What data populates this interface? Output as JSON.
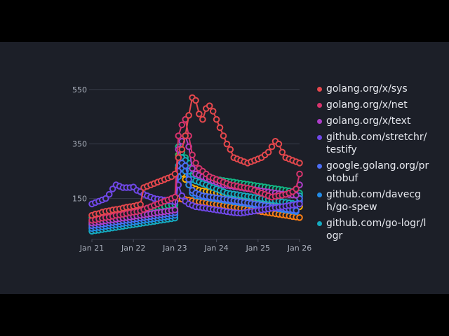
{
  "chart_data": {
    "type": "line",
    "x": [
      "2021-01",
      "2021-02",
      "2021-03",
      "2021-04",
      "2021-05",
      "2021-06",
      "2021-07",
      "2021-08",
      "2021-09",
      "2021-10",
      "2021-11",
      "2021-12",
      "2022-01",
      "2022-02",
      "2022-03",
      "2022-04",
      "2022-05",
      "2022-06",
      "2022-07",
      "2022-08",
      "2022-09",
      "2022-10",
      "2022-11",
      "2022-12",
      "2023-01",
      "2023-02",
      "2023-03",
      "2023-04",
      "2023-05",
      "2023-06",
      "2023-07",
      "2023-08",
      "2023-09",
      "2023-10",
      "2023-11",
      "2023-12",
      "2024-01",
      "2024-02",
      "2024-03",
      "2024-04",
      "2024-05",
      "2024-06",
      "2024-07",
      "2024-08",
      "2024-09",
      "2024-10",
      "2024-11",
      "2024-12",
      "2025-01",
      "2025-02",
      "2025-03",
      "2025-04",
      "2025-05",
      "2025-06",
      "2025-07",
      "2025-08",
      "2025-09",
      "2025-10",
      "2025-11",
      "2025-12",
      "2026-01"
    ],
    "xticks": [
      "Jan 21",
      "Jan 22",
      "Jan 23",
      "Jan 24",
      "Jan 25",
      "Jan 26"
    ],
    "yticks": [
      150,
      350,
      550
    ],
    "ylim": [
      0,
      570
    ],
    "grid": true,
    "legend_position": "right",
    "series": [
      {
        "name": "golang.org/x/sys",
        "color": "#e5484d",
        "values": [
          88,
          93,
          95,
          100,
          103,
          105,
          108,
          110,
          112,
          115,
          118,
          120,
          122,
          125,
          128,
          190,
          195,
          200,
          205,
          210,
          215,
          220,
          225,
          230,
          240,
          300,
          330,
          380,
          455,
          520,
          510,
          460,
          440,
          480,
          490,
          470,
          440,
          410,
          380,
          350,
          330,
          300,
          295,
          290,
          285,
          280,
          285,
          290,
          295,
          300,
          310,
          320,
          340,
          360,
          350,
          320,
          300,
          295,
          290,
          285,
          280
        ]
      },
      {
        "name": "golang.org/x/net",
        "color": "#d6336c",
        "values": [
          70,
          72,
          75,
          78,
          80,
          82,
          85,
          88,
          90,
          92,
          95,
          98,
          100,
          102,
          105,
          110,
          115,
          120,
          125,
          130,
          135,
          140,
          145,
          150,
          155,
          380,
          420,
          440,
          380,
          310,
          280,
          260,
          250,
          240,
          230,
          225,
          220,
          215,
          210,
          205,
          200,
          198,
          195,
          192,
          190,
          188,
          185,
          180,
          175,
          170,
          165,
          160,
          155,
          158,
          160,
          162,
          165,
          170,
          175,
          185,
          240
        ]
      },
      {
        "name": "golang.org/x/text",
        "color": "#ae3ec9",
        "values": [
          60,
          62,
          64,
          66,
          68,
          70,
          72,
          74,
          76,
          78,
          80,
          82,
          84,
          86,
          88,
          90,
          92,
          94,
          96,
          98,
          100,
          102,
          104,
          106,
          108,
          330,
          360,
          380,
          340,
          260,
          240,
          235,
          230,
          225,
          220,
          215,
          210,
          205,
          200,
          198,
          196,
          194,
          192,
          190,
          188,
          186,
          184,
          182,
          180,
          178,
          176,
          174,
          172,
          170,
          168,
          166,
          165,
          164,
          163,
          162,
          200
        ]
      },
      {
        "name": "github.com/stretchr/testify",
        "color": "#7048e8",
        "values": [
          130,
          135,
          140,
          145,
          150,
          165,
          185,
          200,
          195,
          190,
          190,
          190,
          192,
          180,
          175,
          165,
          160,
          155,
          150,
          148,
          146,
          144,
          142,
          140,
          138,
          200,
          160,
          140,
          130,
          125,
          120,
          118,
          116,
          114,
          112,
          110,
          108,
          106,
          104,
          102,
          100,
          98,
          97,
          96,
          98,
          100,
          102,
          104,
          106,
          108,
          110,
          112,
          114,
          116,
          118,
          120,
          122,
          124,
          126,
          128,
          130
        ]
      },
      {
        "name": "google.golang.org/protobuf",
        "color": "#4c6ef5",
        "values": [
          50,
          52,
          54,
          56,
          58,
          60,
          62,
          64,
          66,
          68,
          70,
          72,
          74,
          76,
          78,
          80,
          82,
          84,
          86,
          88,
          90,
          92,
          94,
          96,
          98,
          250,
          280,
          270,
          220,
          180,
          170,
          165,
          160,
          158,
          156,
          154,
          152,
          150,
          148,
          146,
          144,
          142,
          140,
          138,
          136,
          134,
          132,
          130,
          128,
          126,
          124,
          122,
          120,
          118,
          116,
          114,
          112,
          110,
          108,
          106,
          150
        ]
      },
      {
        "name": "github.com/davecgh/go-spew",
        "color": "#228be6",
        "values": [
          40,
          42,
          44,
          46,
          48,
          50,
          52,
          54,
          56,
          58,
          60,
          62,
          64,
          66,
          68,
          70,
          72,
          74,
          76,
          78,
          80,
          82,
          84,
          86,
          88,
          230,
          260,
          250,
          200,
          170,
          160,
          158,
          156,
          154,
          152,
          150,
          148,
          146,
          144,
          142,
          140,
          138,
          136,
          134,
          132,
          130,
          128,
          126,
          124,
          122,
          120,
          118,
          116,
          114,
          112,
          110,
          108,
          106,
          104,
          102,
          140
        ]
      },
      {
        "name": "github.com/go-logr/logr",
        "color": "#15aabf",
        "values": [
          30,
          32,
          34,
          36,
          38,
          40,
          42,
          44,
          46,
          48,
          50,
          52,
          54,
          56,
          58,
          60,
          62,
          64,
          66,
          68,
          70,
          72,
          74,
          76,
          78,
          270,
          300,
          290,
          250,
          220,
          215,
          210,
          205,
          200,
          195,
          190,
          185,
          180,
          175,
          170,
          168,
          166,
          164,
          162,
          160,
          158,
          156,
          154,
          152,
          150,
          148,
          146,
          144,
          142,
          140,
          138,
          136,
          134,
          132,
          130,
          160
        ]
      },
      {
        "name": "",
        "color": "#12b886",
        "values": [
          80,
          82,
          84,
          86,
          88,
          90,
          92,
          94,
          96,
          98,
          100,
          102,
          104,
          106,
          108,
          110,
          112,
          114,
          116,
          118,
          120,
          122,
          124,
          126,
          128,
          340,
          320,
          300,
          280,
          260,
          250,
          245,
          240,
          235,
          230,
          225,
          220,
          218,
          216,
          214,
          212,
          210,
          208,
          206,
          204,
          202,
          200,
          198,
          196,
          194,
          192,
          190,
          188,
          186,
          184,
          182,
          180,
          178,
          176,
          174,
          170
        ]
      },
      {
        "name": "",
        "color": "#40c057",
        "values": [
          65,
          67,
          69,
          71,
          73,
          75,
          77,
          79,
          81,
          83,
          85,
          87,
          89,
          91,
          93,
          95,
          97,
          99,
          101,
          103,
          105,
          107,
          109,
          111,
          113,
          310,
          300,
          290,
          270,
          250,
          245,
          240,
          235,
          230,
          225,
          220,
          215,
          210,
          208,
          206,
          204,
          202,
          200,
          198,
          196,
          194,
          192,
          190,
          188,
          186,
          184,
          182,
          180,
          178,
          176,
          174,
          172,
          170,
          168,
          166,
          164
        ]
      },
      {
        "name": "",
        "color": "#fab005",
        "values": [
          55,
          57,
          59,
          61,
          63,
          65,
          67,
          69,
          71,
          73,
          75,
          77,
          79,
          81,
          83,
          85,
          87,
          89,
          91,
          93,
          95,
          97,
          99,
          101,
          103,
          260,
          240,
          220,
          200,
          190,
          185,
          180,
          178,
          176,
          174,
          172,
          170,
          168,
          166,
          164,
          162,
          160,
          158,
          156,
          154,
          152,
          150,
          148,
          146,
          144,
          142,
          140,
          138,
          136,
          134,
          132,
          130,
          128,
          126,
          124,
          120
        ]
      },
      {
        "name": "",
        "color": "#fd7e14",
        "values": [
          45,
          47,
          49,
          51,
          53,
          55,
          57,
          59,
          61,
          63,
          65,
          67,
          69,
          71,
          73,
          75,
          77,
          79,
          81,
          83,
          85,
          87,
          89,
          91,
          93,
          150,
          148,
          146,
          144,
          142,
          140,
          138,
          136,
          134,
          132,
          130,
          128,
          126,
          124,
          122,
          120,
          118,
          116,
          114,
          112,
          110,
          108,
          106,
          104,
          102,
          100,
          98,
          96,
          94,
          92,
          90,
          88,
          86,
          84,
          82,
          80
        ]
      }
    ]
  }
}
